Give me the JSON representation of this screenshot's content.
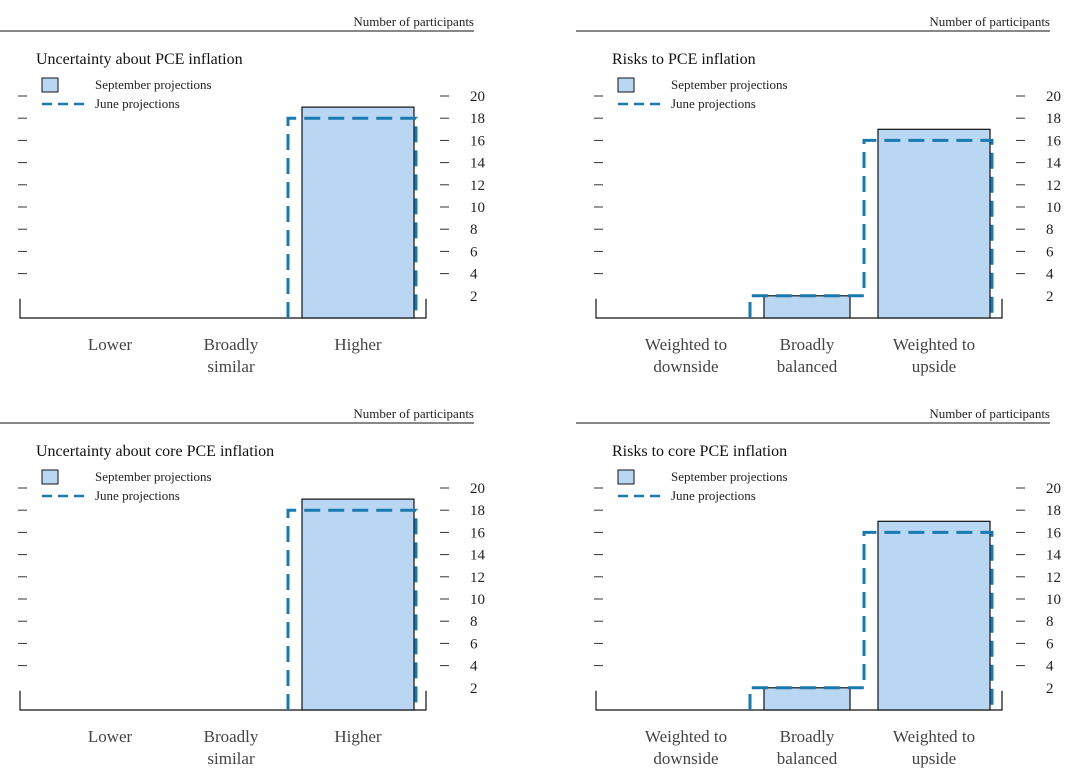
{
  "figure": {
    "units_label": "Number of participants"
  },
  "colors": {
    "bar_fill": "#b9d7f3",
    "bar_stroke": "#111111",
    "june_line": "#1a7ab0"
  },
  "chart_data": [
    {
      "type": "bar",
      "title": "Uncertainty about PCE inflation",
      "units_label": "Number of participants",
      "categories": [
        [
          "Lower"
        ],
        [
          "Broadly",
          "similar"
        ],
        [
          "Higher"
        ]
      ],
      "series": [
        {
          "name": "September projections",
          "style": "solid-filled-bar",
          "values": [
            0,
            0,
            19
          ]
        },
        {
          "name": "June projections",
          "style": "dashed-outline",
          "values": [
            0,
            0,
            18
          ]
        }
      ],
      "yticks": [
        2,
        4,
        6,
        8,
        10,
        12,
        14,
        16,
        18,
        20
      ],
      "ylim": [
        0,
        20
      ],
      "legend": "top-left"
    },
    {
      "type": "bar",
      "title": "Risks to PCE inflation",
      "units_label": "Number of participants",
      "categories": [
        [
          "Weighted to",
          "downside"
        ],
        [
          "Broadly",
          "balanced"
        ],
        [
          "Weighted to",
          "upside"
        ]
      ],
      "series": [
        {
          "name": "September projections",
          "style": "solid-filled-bar",
          "values": [
            0,
            2,
            17
          ]
        },
        {
          "name": "June projections",
          "style": "dashed-outline",
          "values": [
            0,
            2,
            16
          ]
        }
      ],
      "yticks": [
        2,
        4,
        6,
        8,
        10,
        12,
        14,
        16,
        18,
        20
      ],
      "ylim": [
        0,
        20
      ],
      "legend": "top-left"
    },
    {
      "type": "bar",
      "title": "Uncertainty about core PCE inflation",
      "units_label": "Number of participants",
      "categories": [
        [
          "Lower"
        ],
        [
          "Broadly",
          "similar"
        ],
        [
          "Higher"
        ]
      ],
      "series": [
        {
          "name": "September projections",
          "style": "solid-filled-bar",
          "values": [
            0,
            0,
            19
          ]
        },
        {
          "name": "June projections",
          "style": "dashed-outline",
          "values": [
            0,
            0,
            18
          ]
        }
      ],
      "yticks": [
        2,
        4,
        6,
        8,
        10,
        12,
        14,
        16,
        18,
        20
      ],
      "ylim": [
        0,
        20
      ],
      "legend": "top-left"
    },
    {
      "type": "bar",
      "title": "Risks to core PCE inflation",
      "units_label": "Number of participants",
      "categories": [
        [
          "Weighted to",
          "downside"
        ],
        [
          "Broadly",
          "balanced"
        ],
        [
          "Weighted to",
          "upside"
        ]
      ],
      "series": [
        {
          "name": "September projections",
          "style": "solid-filled-bar",
          "values": [
            0,
            2,
            17
          ]
        },
        {
          "name": "June projections",
          "style": "dashed-outline",
          "values": [
            0,
            2,
            16
          ]
        }
      ],
      "yticks": [
        2,
        4,
        6,
        8,
        10,
        12,
        14,
        16,
        18,
        20
      ],
      "ylim": [
        0,
        20
      ],
      "legend": "top-left"
    }
  ]
}
